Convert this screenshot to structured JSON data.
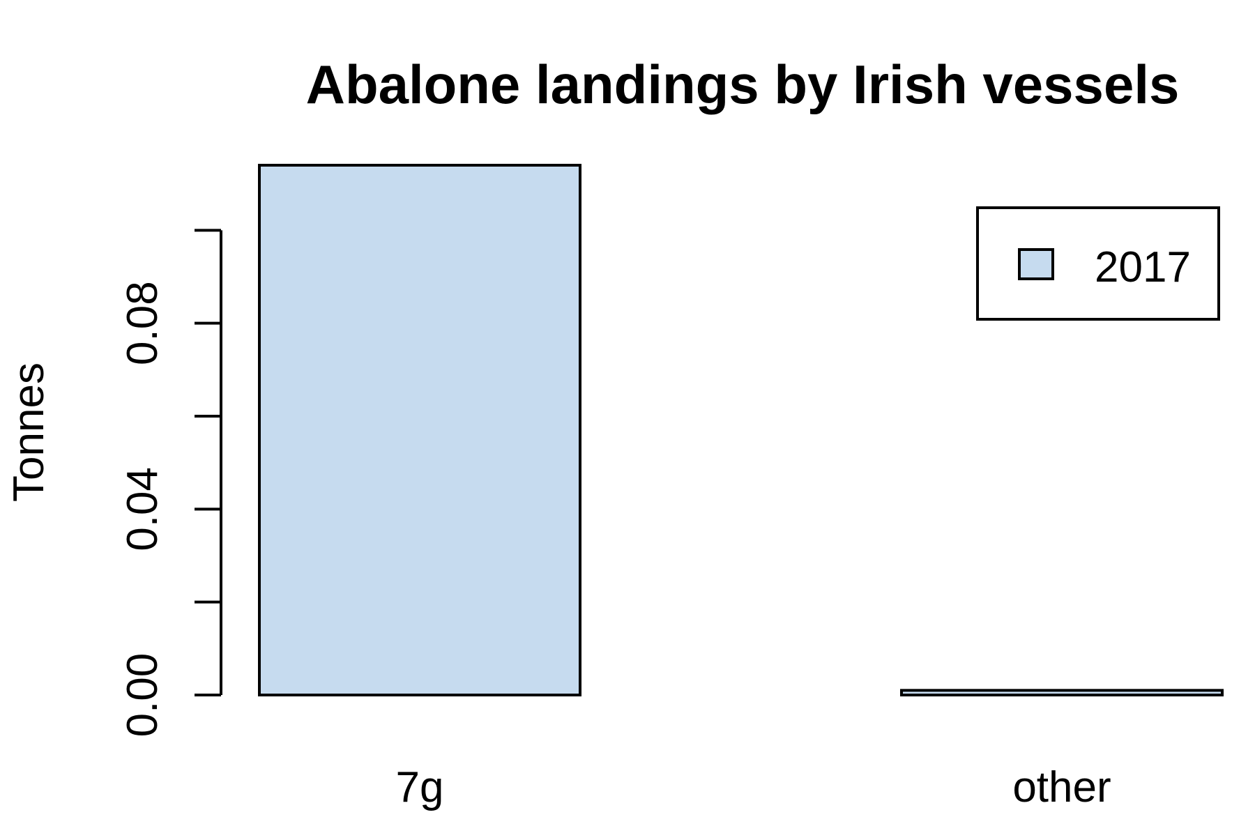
{
  "chart_data": {
    "type": "bar",
    "title": "Abalone landings by Irish vessels",
    "xlabel": "",
    "ylabel": "Tonnes",
    "categories": [
      "7g",
      "other"
    ],
    "series": [
      {
        "name": "2017",
        "values": [
          0.114,
          0.001
        ]
      }
    ],
    "y_ticks": [
      0.0,
      0.02,
      0.04,
      0.06,
      0.08,
      0.1
    ],
    "y_tick_labels": [
      "0.00",
      "",
      "0.04",
      "",
      "0.08",
      ""
    ],
    "ylim": [
      0,
      0.114
    ],
    "legend": {
      "position": "top-right",
      "entries": [
        "2017"
      ]
    },
    "colors": {
      "bar_fill": "#c6dbef",
      "bar_stroke": "#000000",
      "axis": "#000000"
    },
    "grid": false
  }
}
